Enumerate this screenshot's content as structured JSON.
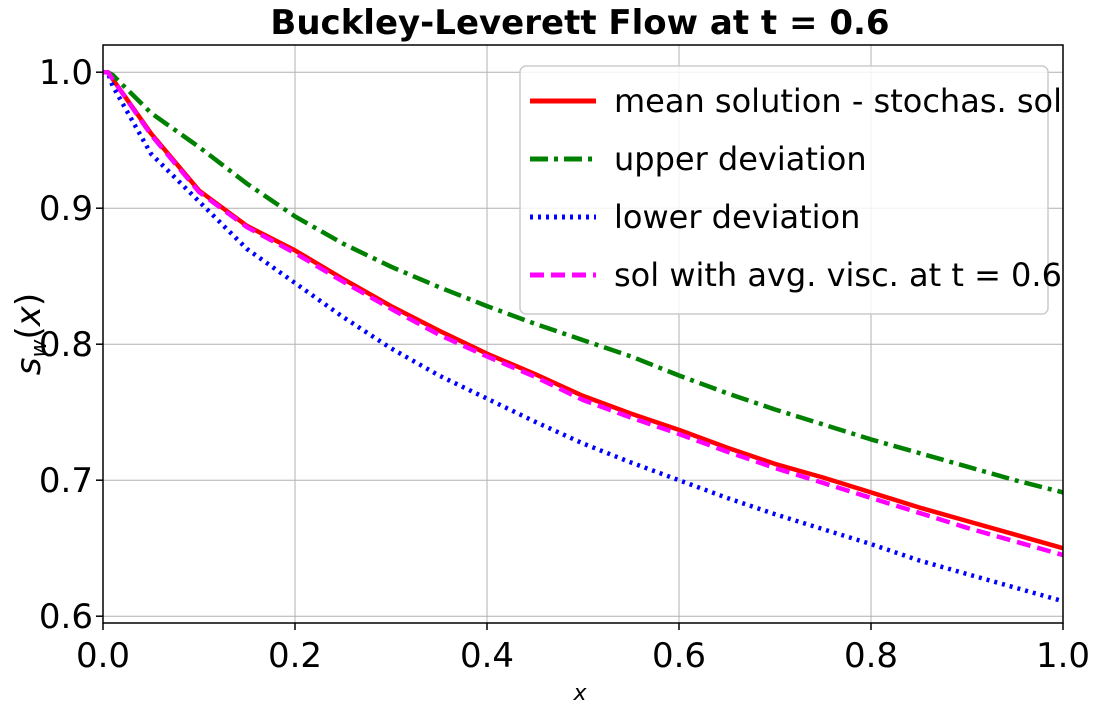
{
  "chart_data": {
    "type": "line",
    "title": "Buckley-Leverett Flow at t = 0.6",
    "xlabel": "x",
    "ylabel": "s_w(x)",
    "xlim": [
      0.0,
      1.0
    ],
    "ylim": [
      0.595,
      1.02
    ],
    "xticks": [
      "0.0",
      "0.2",
      "0.4",
      "0.6",
      "0.8",
      "1.0"
    ],
    "yticks": [
      "0.6",
      "0.7",
      "0.8",
      "0.9",
      "1.0"
    ],
    "grid": true,
    "legend_position": "top-right",
    "x": [
      0.0,
      0.005,
      0.01,
      0.05,
      0.1,
      0.15,
      0.2,
      0.25,
      0.3,
      0.35,
      0.4,
      0.45,
      0.5,
      0.55,
      0.6,
      0.65,
      0.7,
      0.75,
      0.8,
      0.85,
      0.9,
      0.95,
      1.0
    ],
    "series": [
      {
        "name": "mean solution - stochas. sol",
        "color": "#ff0000",
        "dash": "solid",
        "values": [
          1.0,
          1.0,
          0.995,
          0.955,
          0.913,
          0.887,
          0.869,
          0.848,
          0.828,
          0.81,
          0.793,
          0.778,
          0.762,
          0.749,
          0.737,
          0.724,
          0.712,
          0.702,
          0.691,
          0.68,
          0.67,
          0.66,
          0.65
        ]
      },
      {
        "name": "upper deviation",
        "color": "#008000",
        "dash": "dashdot",
        "values": [
          1.0,
          1.0,
          0.998,
          0.97,
          0.945,
          0.918,
          0.894,
          0.874,
          0.857,
          0.842,
          0.828,
          0.815,
          0.803,
          0.791,
          0.777,
          0.764,
          0.752,
          0.741,
          0.73,
          0.72,
          0.71,
          0.7,
          0.691
        ]
      },
      {
        "name": "lower deviation",
        "color": "#0000ff",
        "dash": "dotted",
        "values": [
          1.0,
          1.0,
          0.99,
          0.94,
          0.905,
          0.87,
          0.845,
          0.82,
          0.797,
          0.777,
          0.76,
          0.743,
          0.727,
          0.713,
          0.7,
          0.687,
          0.675,
          0.664,
          0.653,
          0.641,
          0.631,
          0.621,
          0.611
        ]
      },
      {
        "name": "sol with avg. visc. at  t = 0.6",
        "color": "#ff00ff",
        "dash": "dashed",
        "values": [
          1.0,
          1.0,
          0.995,
          0.954,
          0.912,
          0.886,
          0.867,
          0.846,
          0.826,
          0.807,
          0.791,
          0.776,
          0.759,
          0.746,
          0.734,
          0.721,
          0.709,
          0.698,
          0.687,
          0.676,
          0.665,
          0.655,
          0.645
        ]
      }
    ]
  }
}
